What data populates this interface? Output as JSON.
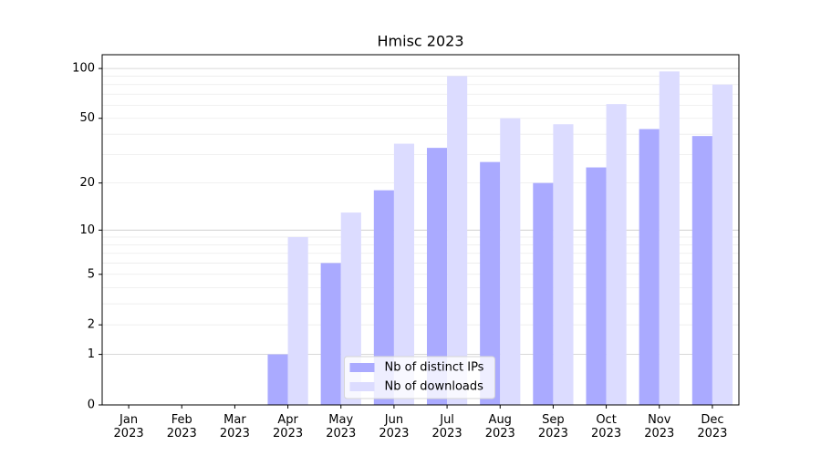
{
  "chart_data": {
    "type": "bar",
    "title": "Hmisc 2023",
    "yscale": "log1p",
    "categories": [
      "Jan\n2023",
      "Feb\n2023",
      "Mar\n2023",
      "Apr\n2023",
      "May\n2023",
      "Jun\n2023",
      "Jul\n2023",
      "Aug\n2023",
      "Sep\n2023",
      "Oct\n2023",
      "Nov\n2023",
      "Dec\n2023"
    ],
    "series": [
      {
        "name": "Nb of distinct IPs",
        "color": "#aaaaff",
        "values": [
          0,
          0,
          0,
          1,
          6,
          18,
          33,
          27,
          20,
          25,
          43,
          39
        ]
      },
      {
        "name": "Nb of downloads",
        "color": "#dcdcff",
        "values": [
          0,
          0,
          0,
          9,
          13,
          35,
          90,
          50,
          46,
          61,
          96,
          80
        ]
      }
    ],
    "ylim": [
      0,
      121
    ],
    "yticks": [
      0,
      1,
      2,
      5,
      10,
      20,
      50,
      100
    ],
    "yminor": [
      3,
      4,
      6,
      7,
      8,
      9,
      30,
      40,
      60,
      70,
      80,
      90
    ],
    "grid": true,
    "legend": "lower center"
  }
}
